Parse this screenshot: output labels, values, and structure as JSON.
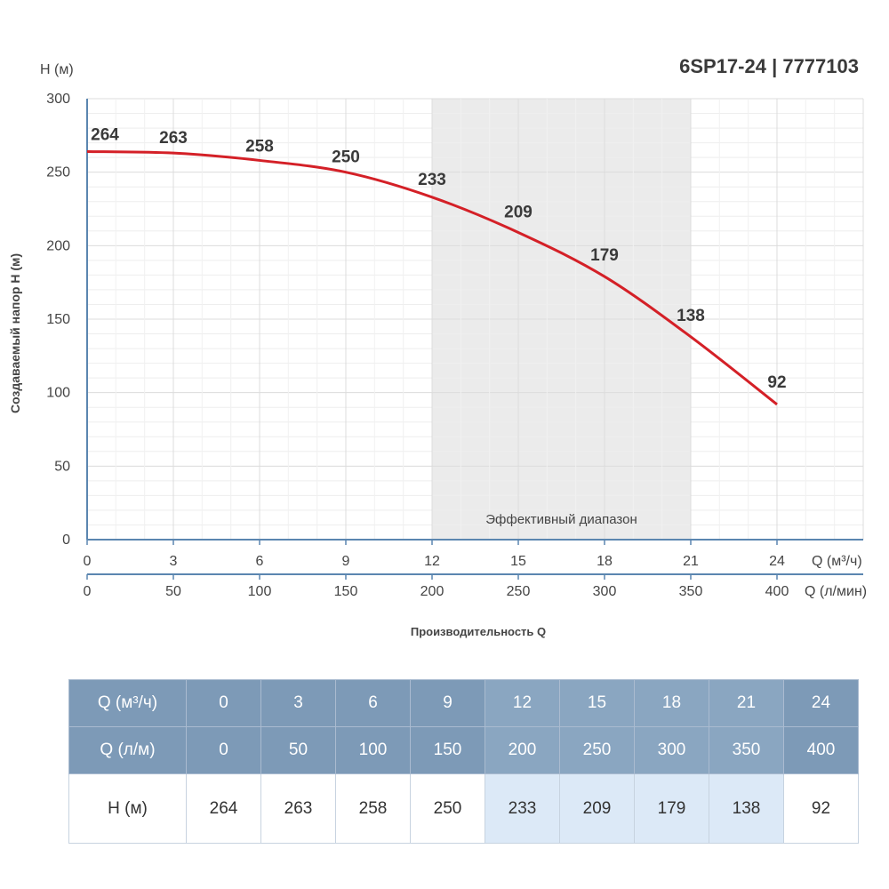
{
  "title": "6SP17-24 | 7777103",
  "chart_data": {
    "type": "line",
    "y_unit_label": "H (м)",
    "ylabel": "Создаваемый напор H (м)",
    "xlabel": "Производительность Q",
    "x_unit_label": "Q (м³/ч)",
    "x2_unit_label": "Q (л/мин)",
    "region_label": "Эффективный диапазон",
    "region": [
      12,
      21
    ],
    "ylim": [
      0,
      300
    ],
    "xlim": [
      0,
      27
    ],
    "yticks": [
      0,
      50,
      100,
      150,
      200,
      250,
      300
    ],
    "x": [
      0,
      3,
      6,
      9,
      12,
      15,
      18,
      21,
      24
    ],
    "x2": [
      0,
      50,
      100,
      150,
      200,
      250,
      300,
      350,
      400
    ],
    "series": [
      {
        "values": [
          264,
          263,
          258,
          250,
          233,
          209,
          179,
          138,
          92
        ]
      }
    ],
    "grid": true,
    "colors": {
      "line": "#d42027",
      "region": "#ebebeb",
      "axis": "#5b86b0",
      "grid": "#e6e6e6"
    }
  },
  "table": {
    "rows": [
      {
        "label": "Q (м³/ч)",
        "values": [
          "0",
          "3",
          "6",
          "9",
          "12",
          "15",
          "18",
          "21",
          "24"
        ]
      },
      {
        "label": "Q (л/м)",
        "values": [
          "0",
          "50",
          "100",
          "150",
          "200",
          "250",
          "300",
          "350",
          "400"
        ]
      },
      {
        "label": "H (м)",
        "values": [
          "264",
          "263",
          "258",
          "250",
          "233",
          "209",
          "179",
          "138",
          "92"
        ]
      }
    ],
    "highlight_columns": [
      4,
      5,
      6,
      7
    ],
    "colors": {
      "header_bg": "#7d9ab7",
      "highlight_bg": "#dce9f7"
    }
  }
}
